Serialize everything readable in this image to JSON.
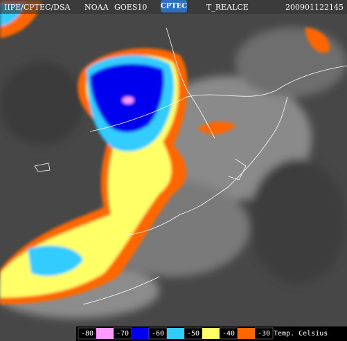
{
  "header": {
    "source": "IIPE/CPTEC/DSA",
    "satellite": "NOAA",
    "sensor": "GOES10",
    "logo": "CPTEC",
    "product": "T_REALCE",
    "timestamp": "200901122145"
  },
  "legend": {
    "labels": [
      -80,
      -70,
      -60,
      -50,
      -40,
      -30
    ],
    "colors": [
      "#ff99ff",
      "#0000ee",
      "#33ccff",
      "#ffff66",
      "#ff6600"
    ],
    "unit": "Temp. Celsius"
  }
}
